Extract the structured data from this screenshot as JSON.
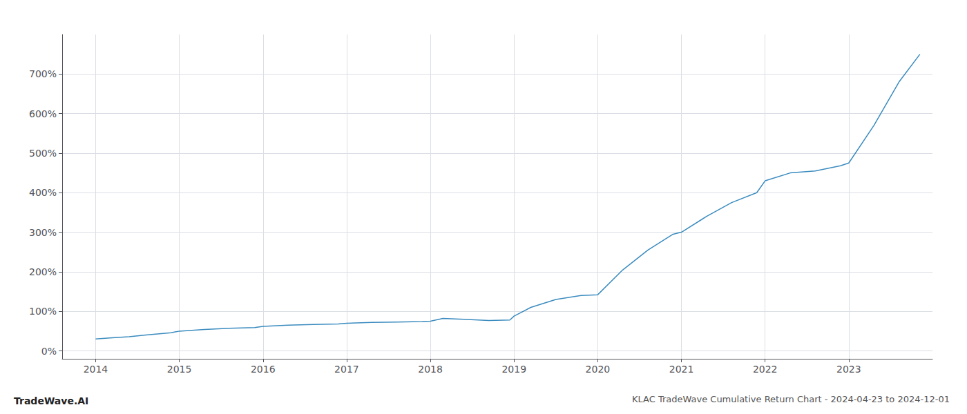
{
  "chart_data": {
    "type": "line",
    "title": "KLAC TradeWave Cumulative Return Chart - 2024-04-23 to 2024-12-01",
    "annotations": [
      "TradeWave.AI"
    ],
    "x": [
      2014.0,
      2014.2,
      2014.4,
      2014.6,
      2014.9,
      2015.0,
      2015.3,
      2015.6,
      2015.9,
      2016.0,
      2016.3,
      2016.6,
      2016.9,
      2017.0,
      2017.3,
      2017.6,
      2017.9,
      2018.0,
      2018.15,
      2018.4,
      2018.7,
      2018.95,
      2019.0,
      2019.2,
      2019.5,
      2019.8,
      2020.0,
      2020.3,
      2020.6,
      2020.9,
      2021.0,
      2021.3,
      2021.6,
      2021.9,
      2022.0,
      2022.3,
      2022.6,
      2022.9,
      2023.0,
      2023.3,
      2023.6,
      2023.85
    ],
    "values": [
      30,
      33,
      36,
      40,
      46,
      50,
      54,
      57,
      59,
      62,
      65,
      67,
      68,
      70,
      72,
      73,
      74,
      75,
      82,
      80,
      77,
      78,
      88,
      110,
      130,
      140,
      142,
      205,
      255,
      295,
      300,
      340,
      375,
      400,
      430,
      450,
      455,
      468,
      475,
      570,
      680,
      750
    ],
    "color": "#3a8bbf",
    "xlim": [
      2013.6,
      2024.0
    ],
    "xticks": [
      2014,
      2015,
      2016,
      2017,
      2018,
      2019,
      2020,
      2021,
      2022,
      2023
    ],
    "ylim": [
      -20,
      800
    ],
    "yticks": [
      {
        "value": 0,
        "label": "0%"
      },
      {
        "value": 100,
        "label": "100%"
      },
      {
        "value": 200,
        "label": "200%"
      },
      {
        "value": 300,
        "label": "300%"
      },
      {
        "value": 400,
        "label": "400%"
      },
      {
        "value": 500,
        "label": "500%"
      },
      {
        "value": 600,
        "label": "600%"
      },
      {
        "value": 700,
        "label": "700%"
      }
    ],
    "grid": true
  }
}
